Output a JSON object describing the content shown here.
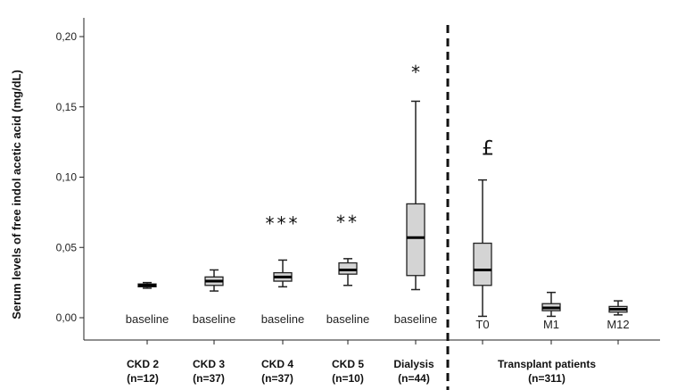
{
  "chart_data": {
    "type": "boxplot",
    "ylabel": "Serum levels of free indol acetic acid (mg/dL)",
    "ylim": [
      0,
      0.2
    ],
    "yticks": [
      {
        "value": 0.0,
        "label": "0,00"
      },
      {
        "value": 0.05,
        "label": "0,05"
      },
      {
        "value": 0.1,
        "label": "0,10"
      },
      {
        "value": 0.15,
        "label": "0,15"
      },
      {
        "value": 0.2,
        "label": "0,20"
      }
    ],
    "boxes": [
      {
        "label": "baseline",
        "min": 0.021,
        "q1": 0.022,
        "median": 0.023,
        "q3": 0.024,
        "max": 0.025,
        "sig": ""
      },
      {
        "label": "baseline",
        "min": 0.019,
        "q1": 0.023,
        "median": 0.026,
        "q3": 0.029,
        "max": 0.034,
        "sig": ""
      },
      {
        "label": "baseline",
        "min": 0.022,
        "q1": 0.026,
        "median": 0.029,
        "q3": 0.032,
        "max": 0.041,
        "sig": "***"
      },
      {
        "label": "baseline",
        "min": 0.023,
        "q1": 0.031,
        "median": 0.034,
        "q3": 0.039,
        "max": 0.042,
        "sig": "**"
      },
      {
        "label": "baseline",
        "min": 0.02,
        "q1": 0.03,
        "median": 0.057,
        "q3": 0.081,
        "max": 0.154,
        "sig": "*"
      },
      {
        "label": "T0",
        "min": 0.001,
        "q1": 0.023,
        "median": 0.034,
        "q3": 0.053,
        "max": 0.098,
        "sig": "£"
      },
      {
        "label": "M1",
        "min": 0.001,
        "q1": 0.005,
        "median": 0.007,
        "q3": 0.01,
        "max": 0.018,
        "sig": ""
      },
      {
        "label": "M12",
        "min": 0.002,
        "q1": 0.004,
        "median": 0.006,
        "q3": 0.008,
        "max": 0.012,
        "sig": ""
      }
    ],
    "groups": [
      {
        "line1": "CKD 2",
        "line2": "(n=12)"
      },
      {
        "line1": "CKD 3",
        "line2": "(n=37)"
      },
      {
        "line1": "CKD 4",
        "line2": "(n=37)"
      },
      {
        "line1": "CKD 5",
        "line2": "(n=10)"
      },
      {
        "line1": "Dialysis",
        "line2": "(n=44)"
      },
      {
        "line1": "Transplant patients",
        "line2": "(n=311)"
      }
    ],
    "separator": "dashed vertical line between Dialysis and Transplant patients",
    "box_fill": "#d4d4d4",
    "line_color": "#222222",
    "grid": false
  }
}
